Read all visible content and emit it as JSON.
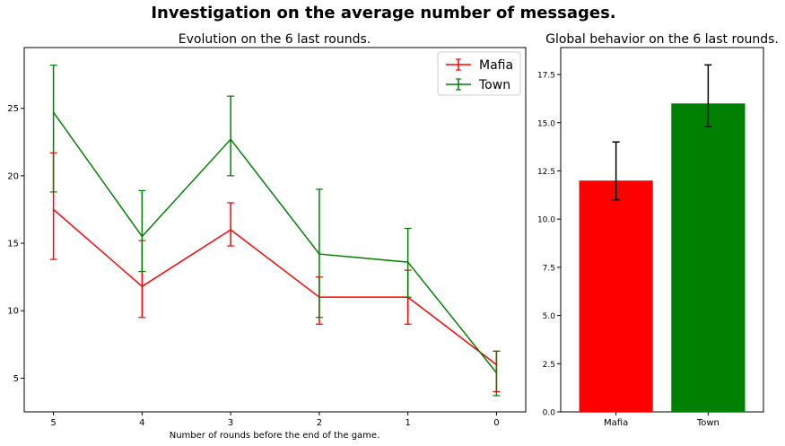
{
  "figure_title": "Investigation on the average number of messages.",
  "chart_data": [
    {
      "type": "line",
      "title": "Evolution on the 6 last rounds.",
      "xlabel": "Number of rounds before the end of the game.",
      "ylabel": "",
      "x": [
        5,
        4,
        3,
        2,
        1,
        0
      ],
      "xlim": [
        5.33,
        -0.33
      ],
      "ylim": [
        2.5,
        29.5
      ],
      "yticks": [
        5,
        10,
        15,
        20,
        25
      ],
      "grid": false,
      "legend_position": "upper right",
      "series": [
        {
          "name": "Mafia",
          "color": "#ff0000",
          "values": [
            17.5,
            11.8,
            16.0,
            11.0,
            11.0,
            6.0
          ],
          "err_low": [
            13.8,
            9.5,
            14.8,
            9.0,
            9.0,
            4.0
          ],
          "err_high": [
            21.7,
            15.2,
            18.0,
            12.5,
            13.0,
            7.0
          ]
        },
        {
          "name": "Town",
          "color": "#008000",
          "values": [
            24.7,
            15.5,
            22.7,
            14.2,
            13.6,
            5.4
          ],
          "err_low": [
            18.8,
            12.9,
            20.0,
            9.5,
            11.0,
            3.7
          ],
          "err_high": [
            28.2,
            18.9,
            25.9,
            19.0,
            16.1,
            7.0
          ]
        }
      ]
    },
    {
      "type": "bar",
      "title": "Global behavior on the 6 last rounds.",
      "categories": [
        "Mafia",
        "Town"
      ],
      "values": [
        12.0,
        16.0
      ],
      "err_low": [
        11.0,
        14.8
      ],
      "err_high": [
        14.0,
        18.0
      ],
      "colors": [
        "#ff0000",
        "#008000"
      ],
      "ylim": [
        0,
        18.9
      ],
      "yticks": [
        0.0,
        2.5,
        5.0,
        7.5,
        10.0,
        12.5,
        15.0,
        17.5
      ],
      "ytick_labels": [
        "0.0",
        "2.5",
        "5.0",
        "7.5",
        "10.0",
        "12.5",
        "15.0",
        "17.5"
      ],
      "xlabel": "",
      "ylabel": "",
      "grid": false
    }
  ]
}
